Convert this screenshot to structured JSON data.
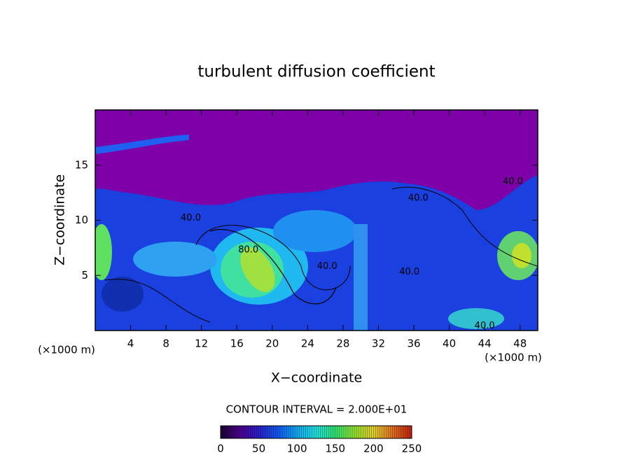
{
  "chart_data": {
    "type": "contour",
    "title": "turbulent diffusion coefficient",
    "x_label": "X−coordinate",
    "y_label": "Z−coordinate",
    "x_unit_left": "(×1000 m)",
    "x_unit_right": "(×1000 m)",
    "xlim": [
      0,
      50
    ],
    "xticks": [
      4,
      8,
      12,
      16,
      20,
      24,
      28,
      32,
      36,
      40,
      44,
      48
    ],
    "ylim": [
      0,
      20
    ],
    "yticks": [
      5,
      10,
      15
    ],
    "contour_interval_text": "CONTOUR INTERVAL = 2.000E+01",
    "contour_labels": [
      {
        "text": "40.0",
        "x": 10.8,
        "y": 10.2
      },
      {
        "text": "80.0",
        "x": 17.3,
        "y": 7.3
      },
      {
        "text": "40.0",
        "x": 26.2,
        "y": 5.8
      },
      {
        "text": "40.0",
        "x": 35.5,
        "y": 5.3
      },
      {
        "text": "40.0",
        "x": 36.5,
        "y": 12.0
      },
      {
        "text": "40.0",
        "x": 47.2,
        "y": 13.5
      },
      {
        "text": "40.0",
        "x": 44.0,
        "y": 0.4
      }
    ],
    "clim": [
      0,
      250
    ],
    "cticks": [
      0,
      50,
      100,
      150,
      200,
      250
    ],
    "colormap": [
      "#1a0030",
      "#4b0090",
      "#2a20c8",
      "#1058f0",
      "#10a8f0",
      "#20e0e0",
      "#30e070",
      "#90e030",
      "#e0d030",
      "#e07020",
      "#c02010"
    ]
  }
}
